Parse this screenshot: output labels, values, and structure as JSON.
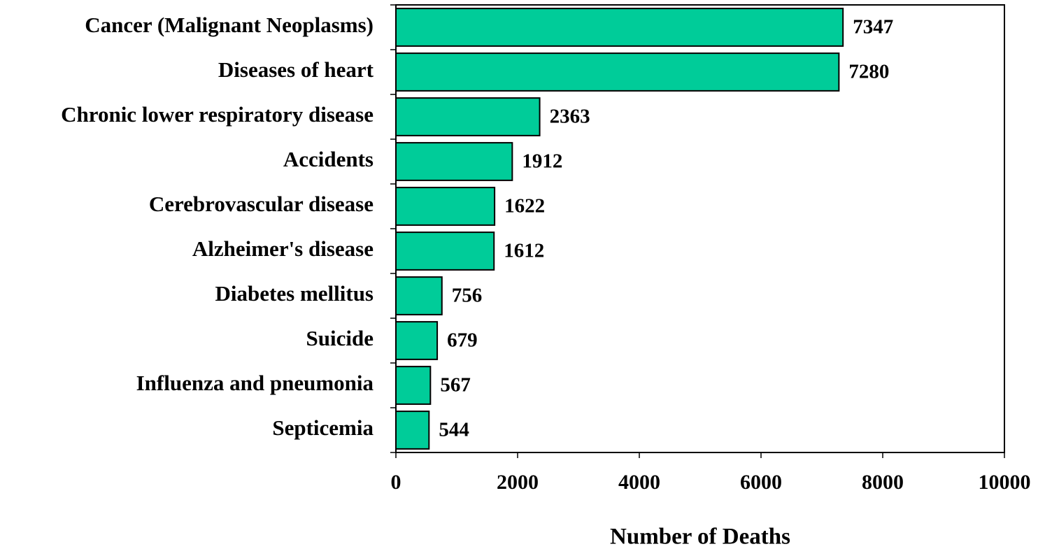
{
  "chart_data": {
    "type": "barh",
    "categories": [
      "Cancer (Malignant Neoplasms)",
      "Diseases of heart",
      "Chronic lower respiratory disease",
      "Accidents",
      "Cerebrovascular disease",
      "Alzheimer's disease",
      "Diabetes mellitus",
      "Suicide",
      "Influenza and pneumonia",
      "Septicemia"
    ],
    "values": [
      7347,
      7280,
      2363,
      1912,
      1622,
      1612,
      756,
      679,
      567,
      544
    ],
    "color": "#00cc99",
    "x_label": "Number of Deaths",
    "xlim": [
      0,
      10000
    ],
    "xticks": [
      0,
      2000,
      4000,
      6000,
      8000,
      10000
    ],
    "grid": false
  }
}
